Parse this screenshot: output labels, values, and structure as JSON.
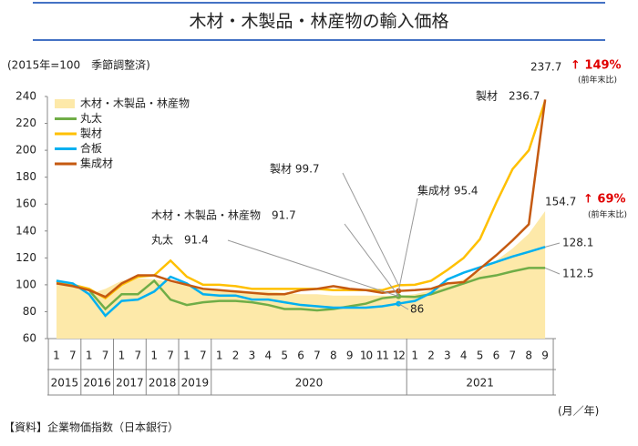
{
  "chart_data": {
    "type": "line",
    "title": "木材・木製品・林産物の輸入価格",
    "subtitle": "(2015年=100　季節調整済)",
    "x_unit": "(月／年)",
    "source": "【資料】企業物価指数（日本銀行）",
    "categories": [
      "1",
      "7",
      "1",
      "7",
      "1",
      "7",
      "1",
      "7",
      "1",
      "7",
      "1",
      "2",
      "3",
      "4",
      "5",
      "6",
      "7",
      "8",
      "9",
      "10",
      "11",
      "12",
      "1",
      "2",
      "3",
      "4",
      "5",
      "6",
      "7",
      "8",
      "9"
    ],
    "years": [
      "2015",
      null,
      "2016",
      null,
      "2017",
      null,
      "2018",
      null,
      "2019",
      null,
      "2020",
      null,
      null,
      null,
      null,
      null,
      null,
      null,
      null,
      null,
      null,
      null,
      "2021",
      null,
      null,
      null,
      null,
      null,
      null,
      null,
      null
    ],
    "ylim": [
      60,
      240
    ],
    "yticks": [
      60,
      80,
      100,
      120,
      140,
      160,
      180,
      200,
      220,
      240
    ],
    "series": [
      {
        "name": "木材・木製品・林産物",
        "kind": "area",
        "color": "#fde9a9",
        "values": [
          102,
          99,
          93,
          97,
          103,
          105,
          104,
          102,
          99,
          97,
          96,
          96,
          95,
          95,
          94,
          93,
          93,
          92,
          92,
          92,
          92,
          91.7,
          93,
          96,
          100,
          104,
          110,
          118,
          127,
          138,
          154.7
        ]
      },
      {
        "name": "丸太",
        "color": "#70ad47",
        "values": [
          103,
          100,
          96,
          82,
          93,
          93,
          103,
          89,
          85,
          87,
          88,
          88,
          87,
          85,
          82,
          82,
          81,
          82,
          84,
          86,
          90,
          91.4,
          91,
          93,
          97,
          101,
          105,
          107,
          110,
          112.5,
          112.5
        ]
      },
      {
        "name": "製材",
        "color": "#ffc000",
        "values": [
          102,
          100,
          97,
          90,
          100,
          106,
          107,
          118,
          106,
          100,
          100,
          99,
          97,
          97,
          97,
          97,
          97,
          96,
          96,
          96,
          96,
          99.7,
          100,
          103,
          111,
          120,
          134,
          161,
          186,
          200,
          236.7
        ]
      },
      {
        "name": "合板",
        "color": "#00b0f0",
        "values": [
          103,
          101,
          93,
          77,
          88,
          89,
          95,
          106,
          101,
          93,
          92,
          92,
          89,
          89,
          87,
          85,
          84,
          83,
          83,
          83,
          84,
          86,
          88,
          94,
          104,
          109,
          113,
          117,
          121,
          124.5,
          128.1
        ]
      },
      {
        "name": "集成材",
        "color": "#c55a11",
        "values": [
          101,
          99,
          96,
          91,
          101,
          107,
          107,
          103,
          100,
          97,
          96,
          95,
          94,
          93,
          93,
          96,
          97,
          99,
          97,
          96,
          94,
          95.4,
          96,
          97,
          101,
          102,
          112,
          122,
          133,
          145,
          237.7
        ]
      }
    ],
    "annotations": [
      "237.7",
      "↑ 149%",
      "(前年末比)",
      "製材　236.7",
      "154.7",
      "↑ 69%",
      "(前年末比)",
      "128.1",
      "112.5",
      "86",
      "製材 99.7",
      "集成材 95.4",
      "木材・木製品・林産物　91.7",
      "丸太　91.4"
    ]
  }
}
